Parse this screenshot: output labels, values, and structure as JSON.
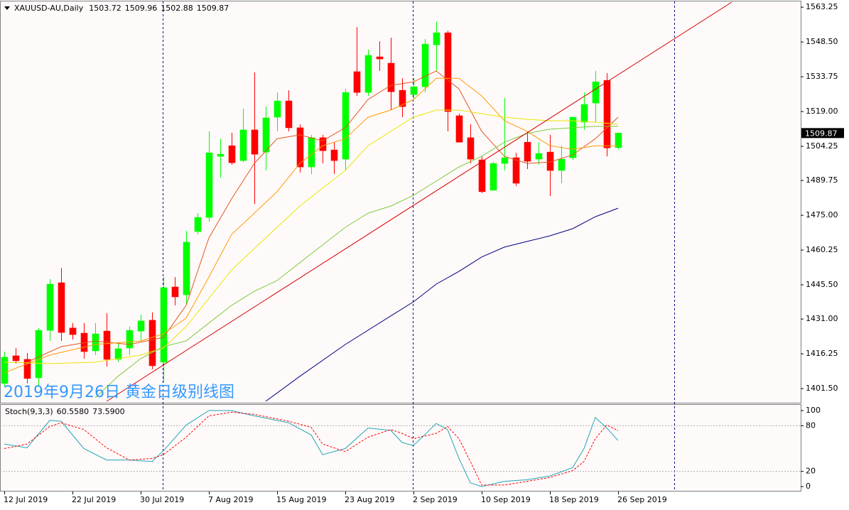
{
  "chart_data": [
    {
      "type": "candlestick",
      "title": "XAUUSD-AU,Daily",
      "annotation": "2019年9月26日 黄金日级别线图",
      "categories": [
        "12 Jul 2019",
        null,
        null,
        null,
        null,
        null,
        "22 Jul 2019",
        null,
        null,
        null,
        null,
        null,
        "30 Jul 2019",
        null,
        null,
        null,
        null,
        null,
        "7 Aug 2019",
        null,
        null,
        null,
        null,
        null,
        "15 Aug 2019",
        null,
        null,
        null,
        null,
        null,
        "23 Aug 2019",
        null,
        null,
        null,
        null,
        null,
        "2 Sep 2019",
        null,
        null,
        null,
        null,
        null,
        "10 Sep 2019",
        null,
        null,
        null,
        null,
        null,
        "18 Sep 2019",
        null,
        null,
        null,
        null,
        null,
        "26 Sep 2019"
      ],
      "open": [
        1403.7,
        1415.4,
        1413.9,
        1406.1,
        1426.2,
        1446.4,
        1427.2,
        1425.0,
        1417.5,
        1425.9,
        1413.9,
        1418.7,
        1425.9,
        1430.5,
        1412.7,
        1444.6,
        1441.3,
        1468.1,
        1474.1,
        1500.0,
        1504.5,
        1498.2,
        1511.2,
        1501.8,
        1516.6,
        1523.5,
        1512.1,
        1495.5,
        1507.9,
        1502.7,
        1498.8,
        1535.9,
        1527.1,
        1542.2,
        1539.5,
        1528.0,
        1526.2,
        1529.5,
        1547.3,
        1552.4,
        1517.2,
        1507.9,
        1498.5,
        1485.6,
        1497.0,
        1499.4,
        1506.0,
        1498.8,
        1501.8,
        1494.0,
        1499.4,
        1514.5,
        1522.6,
        1532.2,
        1503.72
      ],
      "high": [
        1417.2,
        1418.7,
        1416.6,
        1427.2,
        1447.9,
        1452.7,
        1429.3,
        1429.3,
        1429.3,
        1433.5,
        1420.8,
        1427.8,
        1432.9,
        1433.8,
        1448.8,
        1448.8,
        1468.4,
        1475.9,
        1510.6,
        1507.5,
        1510.0,
        1520.2,
        1535.6,
        1521.1,
        1527.1,
        1528.0,
        1513.6,
        1509.1,
        1509.1,
        1506.0,
        1528.6,
        1554.8,
        1545.2,
        1548.8,
        1550.3,
        1533.1,
        1533.1,
        1549.7,
        1557.2,
        1553.3,
        1518.1,
        1513.6,
        1500.0,
        1497.6,
        1524.7,
        1501.5,
        1510.6,
        1506.0,
        1509.1,
        1504.5,
        1516.6,
        1527.1,
        1536.2,
        1535.3,
        1509.96
      ],
      "low": [
        1402.2,
        1412.1,
        1403.7,
        1402.2,
        1421.7,
        1421.7,
        1422.3,
        1414.2,
        1415.7,
        1410.9,
        1412.7,
        1415.7,
        1421.7,
        1409.7,
        1404.3,
        1436.8,
        1437.4,
        1466.9,
        1472.3,
        1491.0,
        1496.4,
        1497.6,
        1479.8,
        1494.0,
        1510.6,
        1510.6,
        1493.1,
        1492.5,
        1497.0,
        1492.5,
        1494.0,
        1525.6,
        1525.6,
        1536.2,
        1519.6,
        1516.6,
        1524.1,
        1527.1,
        1536.2,
        1510.6,
        1506.0,
        1497.0,
        1484.4,
        1485.6,
        1494.0,
        1487.4,
        1494.6,
        1496.4,
        1483.2,
        1488.6,
        1498.5,
        1511.2,
        1514.5,
        1500.0,
        1502.88
      ],
      "close": [
        1414.8,
        1413.3,
        1405.8,
        1426.2,
        1445.8,
        1425.3,
        1424.4,
        1417.2,
        1424.7,
        1413.9,
        1418.4,
        1426.2,
        1430.2,
        1411.2,
        1444.3,
        1440.4,
        1463.6,
        1474.1,
        1501.5,
        1500.9,
        1497.3,
        1511.2,
        1500.9,
        1516.3,
        1523.5,
        1512.1,
        1495.5,
        1507.9,
        1502.4,
        1498.2,
        1527.1,
        1527.1,
        1542.8,
        1541.3,
        1527.4,
        1521.1,
        1529.5,
        1547.6,
        1552.4,
        1519.0,
        1506.0,
        1498.8,
        1485.0,
        1497.0,
        1499.4,
        1488.6,
        1497.9,
        1501.2,
        1494.0,
        1498.8,
        1516.6,
        1522.0,
        1531.6,
        1503.6,
        1509.87
      ],
      "bull_color": "#00ff00",
      "bear_color": "#ff0000",
      "ylim": [
        1395.5,
        1565.7
      ],
      "yticks": [
        1563.25,
        {
          "value": 1548.5,
          "label": "1548.50"
        },
        1533.75,
        {
          "value": 1519,
          "label": "1519.00"
        },
        1504.25,
        1489.75,
        {
          "value": 1475,
          "label": "1475.00"
        },
        1460.25,
        {
          "value": 1445.5,
          "label": "1445.50"
        },
        {
          "value": 1431,
          "label": "1431.00"
        },
        1416.25,
        {
          "value": 1401.5,
          "label": "1401.50"
        }
      ],
      "series": [
        {
          "color": "#e2561c",
          "x": [
            2,
            5,
            8,
            11,
            14,
            16,
            18,
            20,
            22,
            24,
            26,
            28,
            30,
            32,
            34,
            36,
            38,
            40,
            42,
            44,
            46,
            48,
            50,
            52,
            54
          ],
          "values": [
            1412.7,
            1419.3,
            1421.7,
            1420.2,
            1423.2,
            1436.8,
            1465.4,
            1482.0,
            1497.0,
            1507.5,
            1509.1,
            1506.6,
            1512.1,
            1524.1,
            1530.1,
            1531.6,
            1536.2,
            1528.6,
            1510.6,
            1500.0,
            1497.0,
            1497.6,
            1500.6,
            1507.5,
            1516.6
          ]
        },
        {
          "color": "#ff9a00",
          "x": [
            0,
            4,
            8,
            12,
            14,
            16,
            18,
            20,
            22,
            24,
            26,
            28,
            30,
            32,
            34,
            36,
            38,
            40,
            42,
            44,
            46,
            48,
            50,
            52,
            54
          ],
          "values": [
            1408.2,
            1415.7,
            1420.2,
            1421.7,
            1424.7,
            1431.4,
            1448.8,
            1466.9,
            1475.9,
            1485.0,
            1497.0,
            1504.5,
            1507.5,
            1516.6,
            1519.6,
            1524.1,
            1533.1,
            1533.1,
            1525.6,
            1515.1,
            1510.6,
            1504.5,
            1503.0,
            1504.5,
            1504.5
          ]
        },
        {
          "color": "#e8e800",
          "x": [
            0,
            4,
            8,
            12,
            14,
            16,
            18,
            20,
            22,
            24,
            26,
            28,
            30,
            32,
            34,
            36,
            38,
            40,
            42,
            44,
            46,
            48,
            50,
            52,
            54
          ],
          "values": [
            1412.7,
            1412.1,
            1412.7,
            1415.7,
            1418.7,
            1427.8,
            1439.8,
            1451.8,
            1460.9,
            1469.9,
            1478.9,
            1486.5,
            1494.0,
            1504.5,
            1510.6,
            1516.6,
            1519.6,
            1519.6,
            1518.1,
            1516.6,
            1515.7,
            1515.1,
            1515.1,
            1514.5,
            1513.6
          ]
        },
        {
          "color": "#7ccd3a",
          "x": [
            8,
            10,
            12,
            14,
            16,
            18,
            20,
            22,
            24,
            26,
            28,
            30,
            32,
            34,
            36,
            38,
            40,
            42,
            44,
            46,
            48,
            50,
            52,
            54
          ],
          "values": [
            1397.6,
            1406.7,
            1414.2,
            1419.3,
            1421.7,
            1429.3,
            1436.8,
            1442.8,
            1447.3,
            1454.9,
            1462.4,
            1469.9,
            1475.9,
            1478.9,
            1483.5,
            1489.5,
            1495.5,
            1500.0,
            1506.0,
            1509.7,
            1511.5,
            1512.1,
            1512.7,
            1512.7
          ]
        },
        {
          "color": "#000080",
          "x": [
            23,
            26,
            30,
            34,
            36,
            38,
            40,
            42,
            44,
            46,
            48,
            50,
            52,
            54
          ],
          "values": [
            1396.1,
            1406.7,
            1420.2,
            1432.3,
            1438.3,
            1445.8,
            1451.2,
            1457.3,
            1461.5,
            1463.9,
            1466.3,
            1469.3,
            1474.4,
            1478.0
          ]
        },
        {
          "color": "#d40000",
          "x": [
            9,
            64
          ],
          "values": [
            1396.1,
            1565.4
          ]
        }
      ]
    },
    {
      "type": "line",
      "title": "Stoch(9,3,3)",
      "readout": [
        {
          "value": 60.558,
          "label": "60.5580"
        },
        {
          "value": 73.59,
          "label": "73.5900"
        }
      ],
      "ylim": [
        -6.5,
        107.5
      ],
      "yticks": [
        100,
        80,
        20,
        0
      ],
      "levels": [
        80,
        20
      ],
      "series": [
        {
          "color": "#1fa6b4",
          "x": [
            0,
            2,
            4,
            5,
            7,
            9,
            11,
            13,
            14,
            16,
            18,
            20,
            22,
            24,
            25,
            27,
            28,
            30,
            32,
            34,
            35,
            36,
            38,
            39,
            40,
            41,
            42,
            44,
            46,
            48,
            50,
            51,
            52,
            53,
            54
          ],
          "values": [
            56,
            51,
            87,
            86,
            50,
            35,
            35,
            33,
            47,
            81,
            100,
            100,
            93,
            87,
            84,
            68,
            42,
            50,
            77,
            74,
            58,
            54,
            83,
            75,
            37,
            5,
            0,
            7,
            9,
            14,
            25,
            50,
            91,
            77,
            60.558
          ]
        },
        {
          "color": "#ff0000",
          "dashed": true,
          "x": [
            0,
            2,
            4,
            5,
            7,
            9,
            11,
            13,
            14,
            16,
            18,
            20,
            22,
            24,
            25,
            27,
            28,
            30,
            32,
            34,
            35,
            36,
            38,
            39,
            40,
            41,
            42,
            44,
            46,
            48,
            50,
            51,
            52,
            53,
            54
          ],
          "values": [
            50,
            56,
            79,
            84,
            75,
            51,
            35,
            37,
            42,
            65,
            93,
            98,
            95,
            89,
            86,
            78,
            56,
            46,
            65,
            75,
            70,
            63,
            70,
            79,
            63,
            33,
            2,
            2,
            7,
            12,
            21,
            33,
            63,
            81,
            73.59
          ]
        }
      ]
    }
  ]
}
